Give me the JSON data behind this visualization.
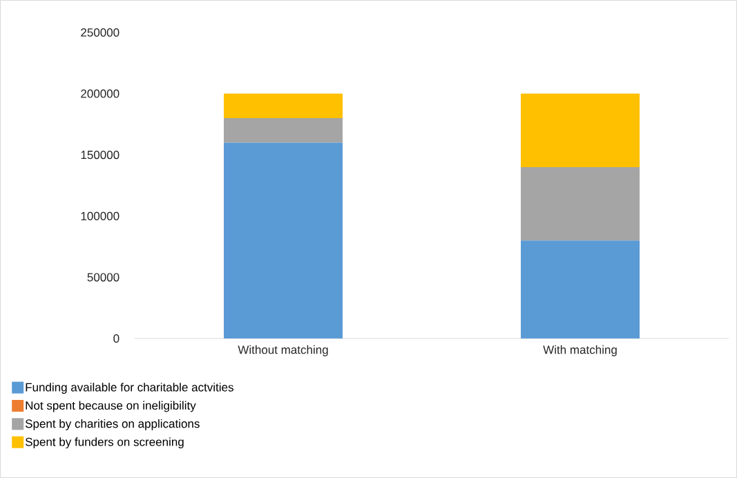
{
  "chart_data": {
    "type": "bar",
    "stacked": true,
    "categories": [
      "Without matching",
      "With matching"
    ],
    "series": [
      {
        "name": "Funding available for charitable actvities",
        "color": "#5b9bd5",
        "values": [
          160000,
          80000
        ]
      },
      {
        "name": "Not spent because on ineligibility",
        "color": "#ed7d31",
        "values": [
          0,
          0
        ]
      },
      {
        "name": "Spent by charities on applications",
        "color": "#a5a5a5",
        "values": [
          20000,
          60000
        ]
      },
      {
        "name": "Spent by funders on screening",
        "color": "#ffc000",
        "values": [
          20000,
          60000
        ]
      }
    ],
    "ylim": [
      0,
      250000
    ],
    "yticks": [
      0,
      50000,
      100000,
      150000,
      200000,
      250000
    ],
    "legend": "bottom"
  }
}
